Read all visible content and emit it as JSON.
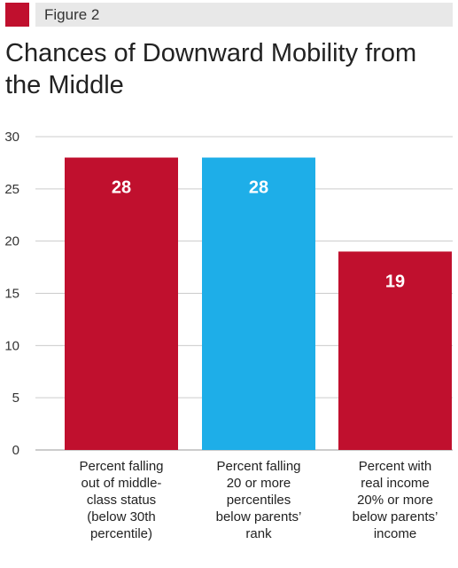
{
  "figure": {
    "label": "Figure 2"
  },
  "colors": {
    "red": "#c0102e",
    "blue": "#1eaee8",
    "grid": "#cccccc"
  },
  "chart_data": {
    "type": "bar",
    "title": "Chances of Downward Mobility from the Middle",
    "categories": [
      "Percent falling out of middle-class status (below 30th percentile)",
      "Percent falling 20 or more percentiles below parents’ rank",
      "Percent with real income 20% or more below parents’ income"
    ],
    "category_lines": [
      [
        "Percent falling",
        "out of middle-",
        "class status",
        "(below 30th",
        "percentile)"
      ],
      [
        "Percent falling",
        "20 or more",
        "percentiles",
        "below parents’",
        "rank"
      ],
      [
        "Percent with",
        "real income",
        "20% or more",
        "below parents’",
        "income"
      ]
    ],
    "values": [
      28,
      28,
      19
    ],
    "value_labels": [
      "28",
      "28",
      "19"
    ],
    "bar_colors": [
      "#c0102e",
      "#1eaee8",
      "#c0102e"
    ],
    "ylim": [
      0,
      30
    ],
    "yticks": [
      0,
      5,
      10,
      15,
      20,
      25,
      30
    ],
    "grid": true,
    "xlabel": "",
    "ylabel": ""
  }
}
